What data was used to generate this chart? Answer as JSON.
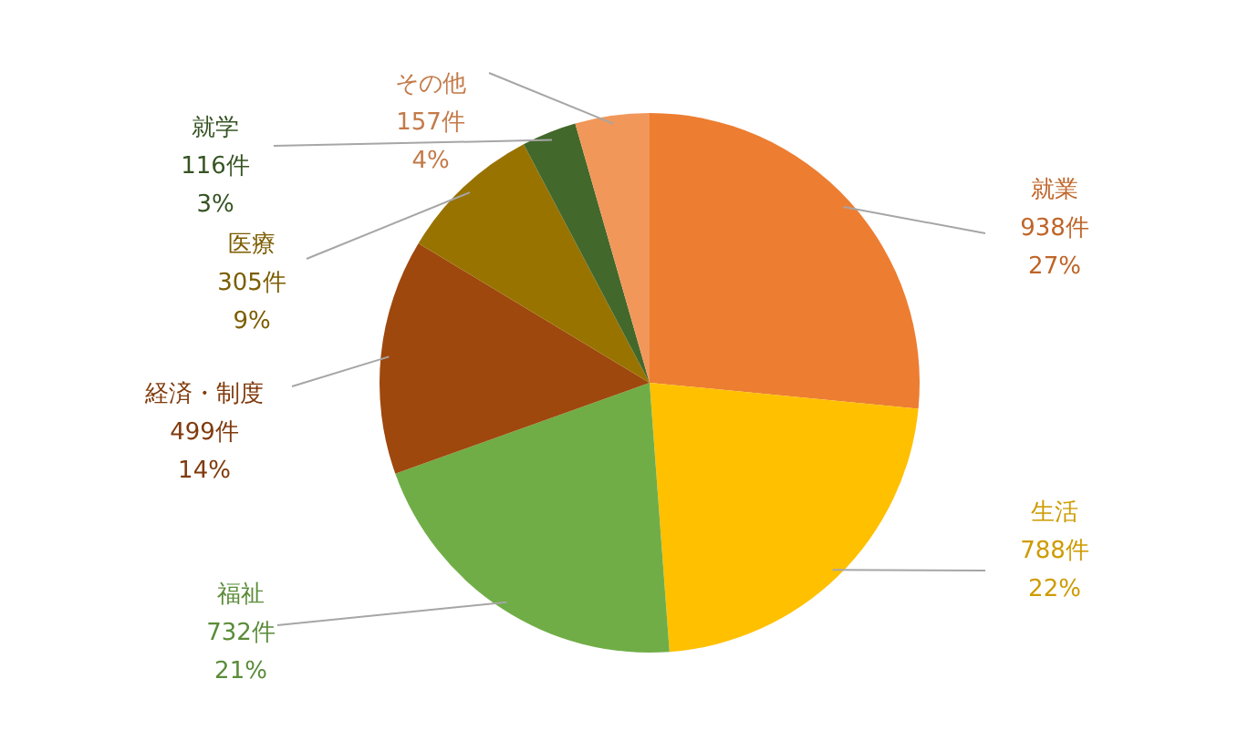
{
  "chart_data": {
    "type": "pie",
    "categories": [
      "就業",
      "生活",
      "福祉",
      "経済・制度",
      "医療",
      "就学",
      "その他"
    ],
    "values": [
      938,
      788,
      732,
      499,
      305,
      116,
      157
    ],
    "colors": [
      "#ed7d31",
      "#ffc000",
      "#70ad47",
      "#9e480e",
      "#997300",
      "#43682b",
      "#f1975a"
    ],
    "value_labels": [
      "938件\n27%",
      "788件\n22%",
      "732件\n21%",
      "499件\n14%",
      "305件\n9%",
      "116件\n3%",
      "157件\n4%"
    ]
  }
}
